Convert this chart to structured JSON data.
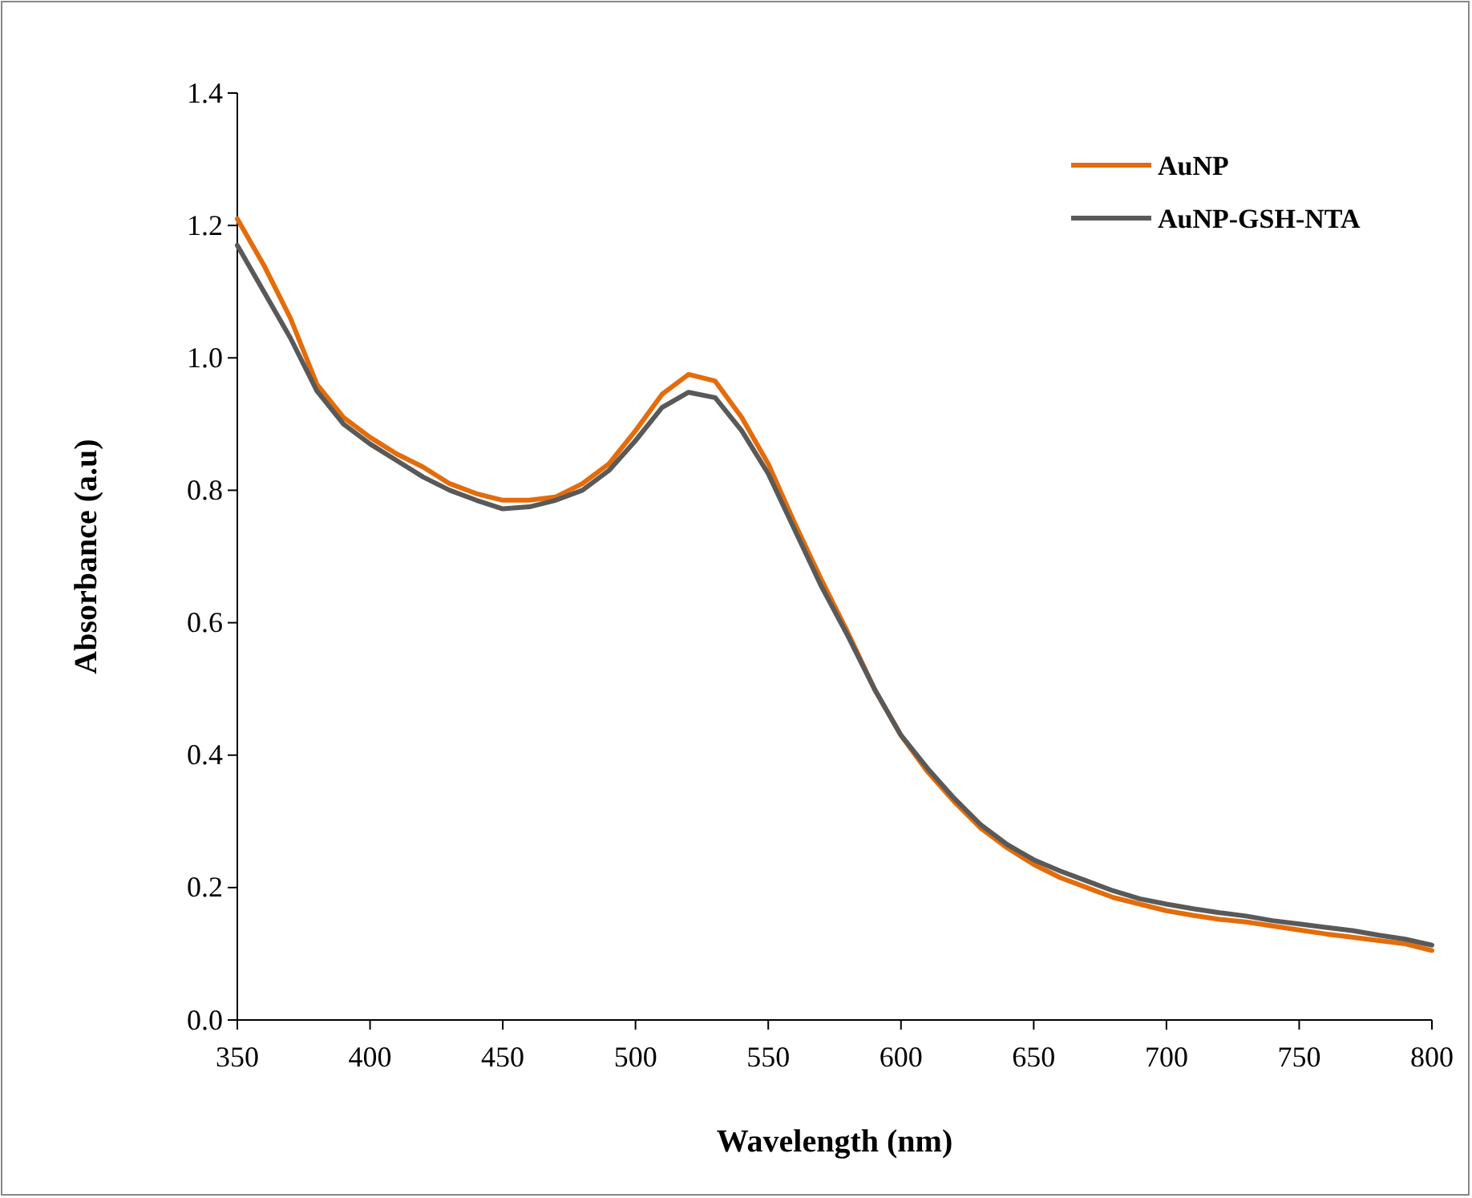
{
  "chart_data": {
    "type": "line",
    "xlabel": "Wavelength (nm)",
    "ylabel": "Absorbance (a.u)",
    "x": [
      350,
      360,
      370,
      380,
      390,
      400,
      410,
      420,
      430,
      440,
      450,
      460,
      470,
      480,
      490,
      500,
      510,
      520,
      530,
      540,
      550,
      560,
      570,
      580,
      590,
      600,
      610,
      620,
      630,
      640,
      650,
      660,
      670,
      680,
      690,
      700,
      710,
      720,
      730,
      740,
      750,
      760,
      770,
      780,
      790,
      800
    ],
    "series": [
      {
        "name": "AuNP",
        "color": "#e46c0a",
        "values": [
          1.21,
          1.14,
          1.06,
          0.96,
          0.91,
          0.88,
          0.855,
          0.835,
          0.81,
          0.795,
          0.785,
          0.785,
          0.79,
          0.81,
          0.84,
          0.89,
          0.945,
          0.975,
          0.965,
          0.91,
          0.84,
          0.75,
          0.665,
          0.585,
          0.5,
          0.43,
          0.375,
          0.33,
          0.29,
          0.26,
          0.235,
          0.215,
          0.2,
          0.185,
          0.175,
          0.165,
          0.158,
          0.152,
          0.148,
          0.142,
          0.136,
          0.13,
          0.125,
          0.12,
          0.115,
          0.105
        ]
      },
      {
        "name": "AuNP-GSH-NTA",
        "color": "#595959",
        "values": [
          1.17,
          1.1,
          1.03,
          0.95,
          0.9,
          0.87,
          0.845,
          0.82,
          0.8,
          0.785,
          0.772,
          0.775,
          0.785,
          0.8,
          0.83,
          0.875,
          0.925,
          0.948,
          0.94,
          0.89,
          0.825,
          0.74,
          0.655,
          0.58,
          0.5,
          0.43,
          0.38,
          0.335,
          0.295,
          0.265,
          0.242,
          0.225,
          0.21,
          0.195,
          0.183,
          0.175,
          0.168,
          0.162,
          0.157,
          0.15,
          0.145,
          0.14,
          0.135,
          0.128,
          0.122,
          0.113
        ]
      }
    ],
    "xlim": [
      350,
      800
    ],
    "xticks": [
      350,
      400,
      450,
      500,
      550,
      600,
      650,
      700,
      750,
      800
    ],
    "ylim": [
      0,
      1.4
    ],
    "yticks": [
      {
        "value": 0,
        "label": "0.0"
      },
      {
        "value": 0.2,
        "label": "0.2"
      },
      {
        "value": 0.4,
        "label": "0.4"
      },
      {
        "value": 0.6,
        "label": "0.6"
      },
      {
        "value": 0.8,
        "label": "0.8"
      },
      {
        "value": 1.0,
        "label": "1.0"
      },
      {
        "value": 1.2,
        "label": "1.2"
      },
      {
        "value": 1.4,
        "label": "1.4"
      }
    ],
    "grid": false,
    "legend": "top right",
    "marker": "none",
    "line_style": "solid"
  }
}
